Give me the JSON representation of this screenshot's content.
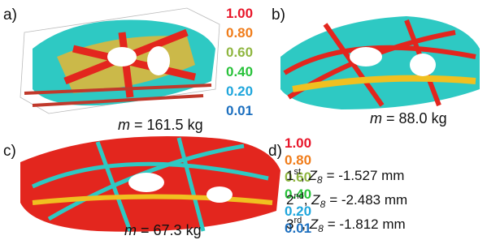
{
  "panels": [
    {
      "label": "a)",
      "mass_symbol": "m",
      "mass_text": "= 161.5 kg"
    },
    {
      "label": "b)",
      "mass_symbol": "m",
      "mass_text": "= 88.0 kg"
    },
    {
      "label": "c)",
      "mass_symbol": "m",
      "mass_text": "= 67.3 kg"
    }
  ],
  "legend": [
    {
      "label": "1.00",
      "color": "#e8162a"
    },
    {
      "label": "0.80",
      "color": "#f07c1a"
    },
    {
      "label": "0.60",
      "color": "#8fb640"
    },
    {
      "label": "0.40",
      "color": "#28c23a"
    },
    {
      "label": "0.20",
      "color": "#1fa6dc"
    },
    {
      "label": "0.01",
      "color": "#1c6fbf"
    }
  ],
  "panel_d": {
    "label": "d)",
    "rows": [
      {
        "ordinal": "1",
        "suffix": "st",
        "symbol": "Z",
        "subscript": "8",
        "value": "= -1.527 mm"
      },
      {
        "ordinal": "2",
        "suffix": "nd",
        "symbol": "Z",
        "subscript": "8",
        "value": "= -2.483 mm"
      },
      {
        "ordinal": "3",
        "suffix": "rd",
        "symbol": "Z",
        "subscript": "8",
        "value": "= -1.812 mm"
      }
    ]
  }
}
